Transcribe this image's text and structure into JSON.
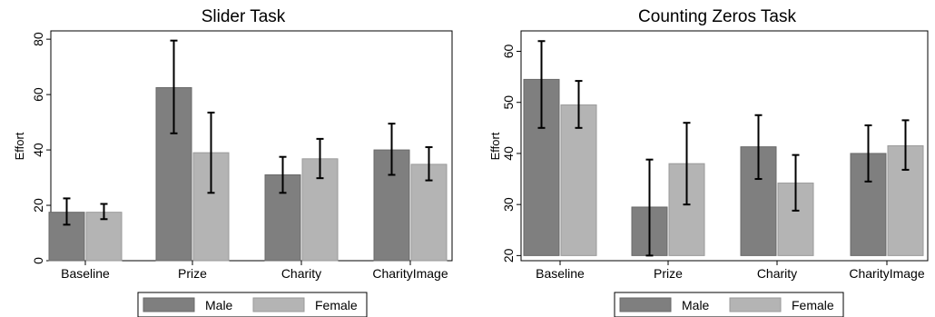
{
  "legend": {
    "male_label": "Male",
    "female_label": "Female"
  },
  "colors": {
    "male": "#7f7f7f",
    "female": "#b4b4b4",
    "male_stroke": "#6a6a6a",
    "female_stroke": "#9a9a9a",
    "err_male": "#000000",
    "err_female": "#000000"
  },
  "chart_data": [
    {
      "type": "bar",
      "title": "Slider Task",
      "ylabel": "Effort",
      "categories": [
        "Baseline",
        "Prize",
        "Charity",
        "CharityImage"
      ],
      "ylim": [
        0,
        83
      ],
      "yticks": [
        0,
        20,
        40,
        60,
        80
      ],
      "series": [
        {
          "name": "Male",
          "values": [
            17.5,
            62.5,
            31,
            40
          ],
          "err_low": [
            13,
            46,
            24.5,
            31
          ],
          "err_high": [
            22.5,
            79.5,
            37.5,
            49.5
          ]
        },
        {
          "name": "Female",
          "values": [
            17.5,
            39,
            36.8,
            34.8
          ],
          "err_low": [
            15,
            24.5,
            29.8,
            29
          ],
          "err_high": [
            20.5,
            53.5,
            44,
            41
          ]
        }
      ],
      "legend_position": "bottom"
    },
    {
      "type": "bar",
      "title": "Counting Zeros Task",
      "ylabel": "Effort",
      "categories": [
        "Baseline",
        "Prize",
        "Charity",
        "CharityImage"
      ],
      "ylim": [
        19,
        64
      ],
      "yticks": [
        20,
        30,
        40,
        50,
        60
      ],
      "series": [
        {
          "name": "Male",
          "values": [
            54.5,
            29.5,
            41.3,
            40
          ],
          "err_low": [
            45,
            20,
            35,
            34.5
          ],
          "err_high": [
            62,
            38.8,
            47.5,
            45.5
          ]
        },
        {
          "name": "Female",
          "values": [
            49.5,
            38,
            34.2,
            41.5
          ],
          "err_low": [
            45,
            30,
            28.8,
            36.8
          ],
          "err_high": [
            54.2,
            46,
            39.7,
            46.5
          ]
        }
      ],
      "legend_position": "bottom"
    }
  ]
}
